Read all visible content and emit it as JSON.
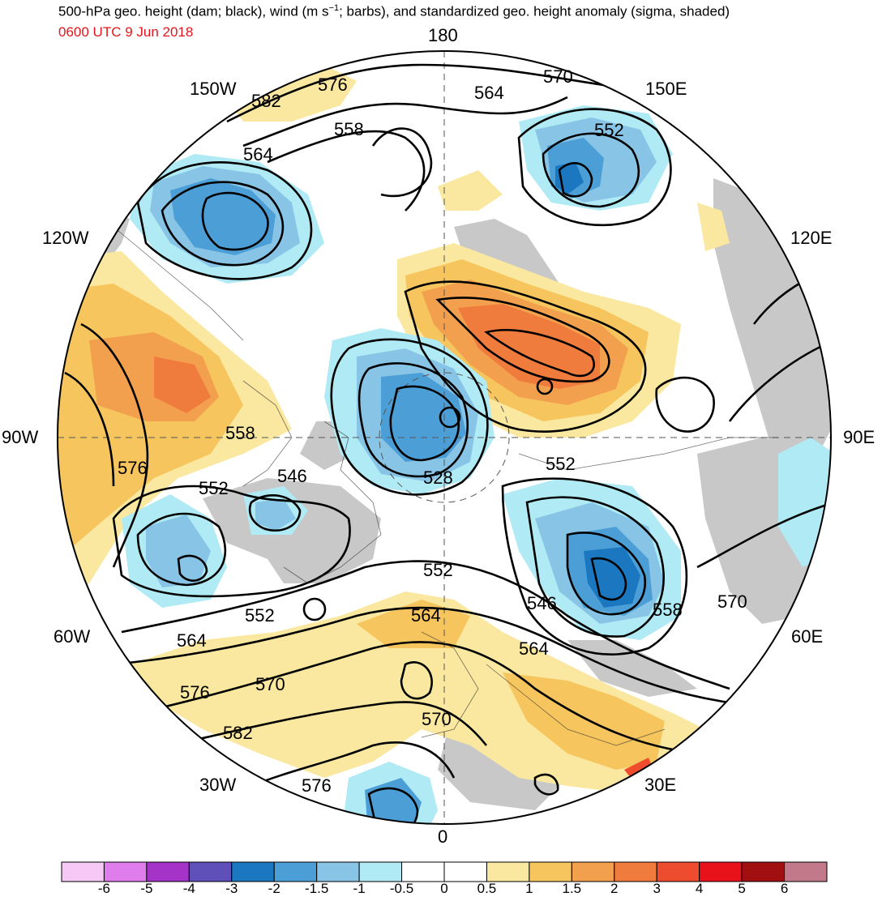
{
  "title": {
    "prefix": "500-hPa geo. height (dam; black), wind (m s",
    "exponent": "−1",
    "suffix": "; barbs), and standardized geo. height anomaly (sigma, shaded)"
  },
  "valid_time": "0600 UTC 9 Jun 2018",
  "longitude_labels": {
    "north": "180",
    "south": "0",
    "east": "90E",
    "west": "90W",
    "l150w": "150W",
    "l150e": "150E",
    "l120w": "120W",
    "l120e": "120E",
    "l60w": "60W",
    "l60e": "60E",
    "l30w": "30W",
    "l30e": "30E"
  },
  "contour_labels": [
    {
      "text": "582"
    },
    {
      "text": "576"
    },
    {
      "text": "570"
    },
    {
      "text": "564"
    },
    {
      "text": "558"
    },
    {
      "text": "564"
    },
    {
      "text": "552"
    },
    {
      "text": "558"
    },
    {
      "text": "576"
    },
    {
      "text": "552"
    },
    {
      "text": "546"
    },
    {
      "text": "528"
    },
    {
      "text": "552"
    },
    {
      "text": "552"
    },
    {
      "text": "552"
    },
    {
      "text": "546"
    },
    {
      "text": "558"
    },
    {
      "text": "570"
    },
    {
      "text": "564"
    },
    {
      "text": "564"
    },
    {
      "text": "564"
    },
    {
      "text": "570"
    },
    {
      "text": "576"
    },
    {
      "text": "582"
    },
    {
      "text": "570"
    },
    {
      "text": "576"
    }
  ],
  "colorbar": {
    "colors": [
      "#f6c8f5",
      "#df7ded",
      "#a633c8",
      "#5e50b8",
      "#1a77c0",
      "#4c9fd6",
      "#88c4e6",
      "#b0eaf5",
      "#ffffff",
      "#ffffff",
      "#fbe8a0",
      "#f6c55d",
      "#f3a04e",
      "#ef7b3d",
      "#ee4c2e",
      "#e8121b",
      "#a20f10",
      "#c27a8a"
    ],
    "ticks": [
      "-6",
      "-5",
      "-4",
      "-3",
      "-2",
      "-1.5",
      "-1",
      "-0.5",
      "0",
      "0.5",
      "1",
      "1.5",
      "2",
      "3",
      "4",
      "5",
      "6"
    ]
  },
  "anomaly_colors": {
    "strong_negative": "#1a77c0",
    "negative": "#4c9fd6",
    "weak_negative": "#88c4e6",
    "slight_negative": "#b0eaf5",
    "slight_positive": "#fbe8a0",
    "positive": "#f6c55d",
    "moderate_positive": "#f3a04e",
    "strong_positive": "#ef7b3d",
    "terrain": "#c8c8c8"
  }
}
